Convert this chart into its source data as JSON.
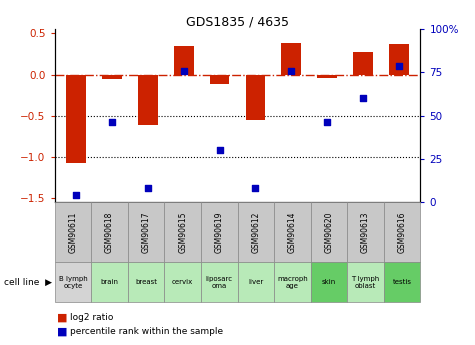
{
  "title": "GDS1835 / 4635",
  "samples": [
    "GSM90611",
    "GSM90618",
    "GSM90617",
    "GSM90615",
    "GSM90619",
    "GSM90612",
    "GSM90614",
    "GSM90620",
    "GSM90613",
    "GSM90616"
  ],
  "cell_lines": [
    "B lymph\nocyte",
    "brain",
    "breast",
    "cervix",
    "liposarc\noma",
    "liver",
    "macroph\nage",
    "skin",
    "T lymph\noblast",
    "testis"
  ],
  "cell_line_colors": [
    "#d4d4d4",
    "#b8eab8",
    "#b8eab8",
    "#b8eab8",
    "#b8eab8",
    "#b8eab8",
    "#b8eab8",
    "#66cc66",
    "#b8eab8",
    "#66cc66"
  ],
  "log2_ratio": [
    -1.08,
    -0.05,
    -0.62,
    0.35,
    -0.12,
    -0.55,
    0.38,
    -0.04,
    0.27,
    0.37
  ],
  "percentile_rank": [
    4,
    46,
    8,
    76,
    30,
    8,
    76,
    46,
    60,
    79
  ],
  "bar_color": "#cc2200",
  "dot_color": "#0000bb",
  "ylim_left": [
    -1.55,
    0.55
  ],
  "ylim_right": [
    0,
    100
  ],
  "yticks_left": [
    0.5,
    0.0,
    -0.5,
    -1.0,
    -1.5
  ],
  "yticks_right": [
    100,
    75,
    50,
    25,
    0
  ],
  "hline_y": 0.0,
  "dotted_lines": [
    -0.5,
    -1.0
  ],
  "gsm_box_color": "#c8c8c8",
  "bar_width": 0.55
}
